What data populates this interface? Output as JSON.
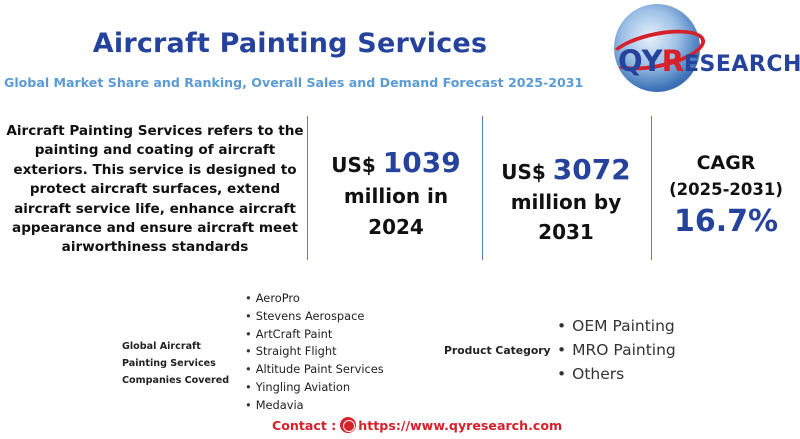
{
  "header": {
    "title": "Aircraft Painting Services",
    "subtitle": "Global Market Share and Ranking, Overall Sales and Demand Forecast 2025-2031"
  },
  "logo": {
    "text_qy": "QY",
    "text_r": "R",
    "text_rest": "ESEARCH"
  },
  "description": "Aircraft Painting Services refers to the painting and coating of aircraft exteriors. This service is designed to protect aircraft surfaces, extend aircraft service life, enhance aircraft appearance and ensure aircraft meet airworthiness standards",
  "stats": {
    "market_2024": {
      "prefix": "US$ ",
      "value": "1039",
      "line2": "million in",
      "line3": "2024"
    },
    "market_2031": {
      "prefix": "US$ ",
      "value": "3072",
      "line2": "million by",
      "line3": "2031"
    },
    "cagr": {
      "line1": "CAGR",
      "line2": "(2025-2031)",
      "value": "16.7%"
    }
  },
  "companies": {
    "label": "Global Aircraft Painting Services Companies Covered",
    "items": [
      "AeroPro",
      "Stevens Aerospace",
      "ArtCraft Paint",
      "Straight Flight",
      "Altitude Paint Services",
      "Yingling Aviation",
      "Medavia"
    ]
  },
  "products": {
    "label": "Product Category",
    "items": [
      "OEM Painting",
      "MRO Painting",
      "Others"
    ]
  },
  "contact": {
    "label": "Contact :",
    "url": "https://www.qyresearch.com"
  },
  "colors": {
    "title_blue": "#25439c",
    "subtitle_blue": "#5b9bd5",
    "accent_red": "#d6202a"
  },
  "icons": {
    "contact": "globe-icon"
  }
}
